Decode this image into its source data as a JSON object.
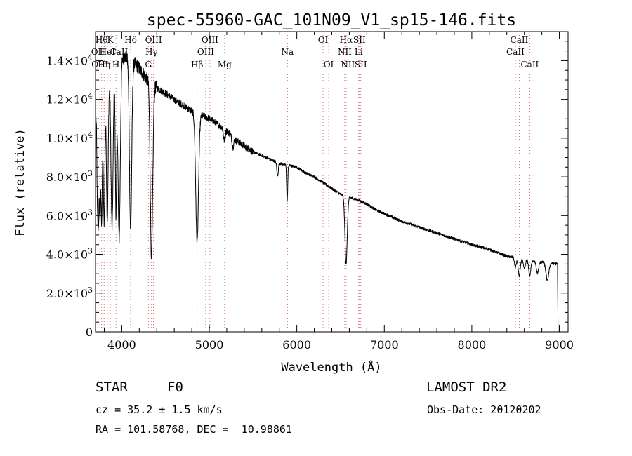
{
  "chart_data": {
    "type": "line",
    "title": "spec-55960-GAC_101N09_V1_sp15-146.fits",
    "xlabel": "Wavelength (Å)",
    "ylabel": "Flux (relative)",
    "xlim": [
      3700,
      9100
    ],
    "ylim": [
      0,
      15500
    ],
    "grid": false,
    "x_ticks": [
      4000,
      5000,
      6000,
      7000,
      8000,
      9000
    ],
    "y_ticks": [
      {
        "value": 0,
        "mant": "0",
        "exp": ""
      },
      {
        "value": 2000,
        "mant": "2.0×10",
        "exp": "3"
      },
      {
        "value": 4000,
        "mant": "4.0×10",
        "exp": "3"
      },
      {
        "value": 6000,
        "mant": "6.0×10",
        "exp": "3"
      },
      {
        "value": 8000,
        "mant": "8.0×10",
        "exp": "3"
      },
      {
        "value": 10000,
        "mant": "1.0×10",
        "exp": "4"
      },
      {
        "value": 12000,
        "mant": "1.2×10",
        "exp": "4"
      },
      {
        "value": 14000,
        "mant": "1.4×10",
        "exp": "4"
      }
    ],
    "continuum": [
      [
        3700,
        11000
      ],
      [
        3800,
        12500
      ],
      [
        3900,
        13500
      ],
      [
        4000,
        14200
      ],
      [
        4100,
        14100
      ],
      [
        4200,
        13600
      ],
      [
        4300,
        13000
      ],
      [
        4400,
        12600
      ],
      [
        4500,
        12300
      ],
      [
        4600,
        12000
      ],
      [
        4700,
        11700
      ],
      [
        4800,
        11400
      ],
      [
        4900,
        11200
      ],
      [
        5000,
        11000
      ],
      [
        5100,
        10700
      ],
      [
        5200,
        10400
      ],
      [
        5300,
        9900
      ],
      [
        5400,
        9600
      ],
      [
        5500,
        9300
      ],
      [
        5600,
        9100
      ],
      [
        5700,
        8900
      ],
      [
        5800,
        8700
      ],
      [
        5900,
        8600
      ],
      [
        6000,
        8500
      ],
      [
        6100,
        8200
      ],
      [
        6200,
        8000
      ],
      [
        6300,
        7700
      ],
      [
        6400,
        7400
      ],
      [
        6500,
        7100
      ],
      [
        6600,
        6950
      ],
      [
        6700,
        6800
      ],
      [
        6800,
        6600
      ],
      [
        6900,
        6300
      ],
      [
        7000,
        6100
      ],
      [
        7200,
        5700
      ],
      [
        7400,
        5400
      ],
      [
        7600,
        5100
      ],
      [
        7800,
        4800
      ],
      [
        8000,
        4500
      ],
      [
        8200,
        4250
      ],
      [
        8400,
        3900
      ],
      [
        8600,
        3750
      ],
      [
        8800,
        3600
      ],
      [
        8980,
        3500
      ]
    ],
    "absorption": [
      {
        "x": 3722,
        "depth": 4500,
        "width": 6
      },
      {
        "x": 3734,
        "depth": 5000,
        "width": 6
      },
      {
        "x": 3750,
        "depth": 5500,
        "width": 7
      },
      {
        "x": 3770,
        "depth": 6200,
        "width": 8
      },
      {
        "x": 3798,
        "depth": 6800,
        "width": 9
      },
      {
        "x": 3835,
        "depth": 7000,
        "width": 10
      },
      {
        "x": 3889,
        "depth": 8000,
        "width": 12
      },
      {
        "x": 3934,
        "depth": 7500,
        "width": 8
      },
      {
        "x": 3970,
        "depth": 9200,
        "width": 13
      },
      {
        "x": 4101,
        "depth": 8800,
        "width": 13
      },
      {
        "x": 4340,
        "depth": 9000,
        "width": 14
      },
      {
        "x": 4861,
        "depth": 6600,
        "width": 16
      },
      {
        "x": 5172,
        "depth": 600,
        "width": 10
      },
      {
        "x": 5270,
        "depth": 500,
        "width": 10
      },
      {
        "x": 5780,
        "depth": 700,
        "width": 8
      },
      {
        "x": 5890,
        "depth": 1900,
        "width": 6
      },
      {
        "x": 6563,
        "depth": 3500,
        "width": 13
      },
      {
        "x": 8498,
        "depth": 500,
        "width": 10
      },
      {
        "x": 8542,
        "depth": 900,
        "width": 12
      },
      {
        "x": 8600,
        "depth": 500,
        "width": 12
      },
      {
        "x": 8662,
        "depth": 800,
        "width": 12
      },
      {
        "x": 8750,
        "depth": 600,
        "width": 14
      },
      {
        "x": 8863,
        "depth": 900,
        "width": 16
      }
    ],
    "line_markers": [
      {
        "x": 3727,
        "label": "OII",
        "row": 1
      },
      {
        "x": 3750,
        "label": "OIII",
        "row": 2
      },
      {
        "x": 3770,
        "label": "Hθ",
        "row": 0
      },
      {
        "x": 3798,
        "label": "Hη",
        "row": 2
      },
      {
        "x": 3835,
        "label": "HeI",
        "row": 1
      },
      {
        "x": 3869,
        "label": "K",
        "row": 0
      },
      {
        "x": 3934,
        "label": "H",
        "row": 2
      },
      {
        "x": 3968,
        "label": "CaII",
        "row": 1
      },
      {
        "x": 4101,
        "label": "Hδ",
        "row": 0
      },
      {
        "x": 4304,
        "label": "G",
        "row": 2
      },
      {
        "x": 4340,
        "label": "Hγ",
        "row": 1
      },
      {
        "x": 4363,
        "label": "OIII",
        "row": 0
      },
      {
        "x": 4861,
        "label": "Hβ",
        "row": 2
      },
      {
        "x": 4959,
        "label": "OIII",
        "row": 1
      },
      {
        "x": 5007,
        "label": "OIII",
        "row": 0
      },
      {
        "x": 5175,
        "label": "Mg",
        "row": 2
      },
      {
        "x": 5893,
        "label": "Na",
        "row": 1
      },
      {
        "x": 6300,
        "label": "OI",
        "row": 0
      },
      {
        "x": 6364,
        "label": "OI",
        "row": 2
      },
      {
        "x": 6548,
        "label": "NII",
        "row": 1
      },
      {
        "x": 6563,
        "label": "Hα",
        "row": 0
      },
      {
        "x": 6583,
        "label": "NII",
        "row": 2
      },
      {
        "x": 6707,
        "label": "Li",
        "row": 1
      },
      {
        "x": 6716,
        "label": "SII",
        "row": 0
      },
      {
        "x": 6731,
        "label": "SII",
        "row": 2
      },
      {
        "x": 8498,
        "label": "CaII",
        "row": 1
      },
      {
        "x": 8542,
        "label": "CaII",
        "row": 0
      },
      {
        "x": 8662,
        "label": "CaII",
        "row": 2
      }
    ]
  },
  "info": {
    "object_class": "STAR",
    "subclass": "F0",
    "survey": "LAMOST DR2",
    "redshift": "cz = 35.2 ± 1.5 km/s",
    "obs_date": "Obs-Date: 20120202",
    "coords": "RA = 101.58768, DEC =  10.98861"
  }
}
